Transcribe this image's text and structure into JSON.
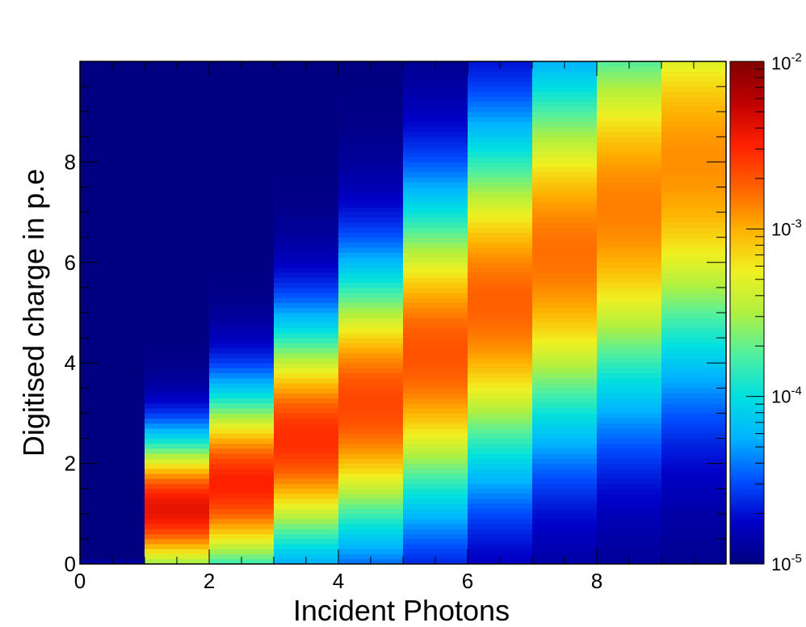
{
  "chart_data": {
    "type": "heatmap",
    "title": "",
    "xlabel": "Incident Photons",
    "ylabel": "Digitised charge in p.e",
    "xlim": [
      0,
      10
    ],
    "ylim": [
      0,
      10
    ],
    "x_ticks": [
      0,
      2,
      4,
      6,
      8
    ],
    "x_tick_labels": [
      "0",
      "2",
      "4",
      "6",
      "8"
    ],
    "y_ticks": [
      0,
      2,
      4,
      6,
      8
    ],
    "y_tick_labels": [
      "0",
      "2",
      "4",
      "6",
      "8"
    ],
    "z_scale": "log",
    "zlim": [
      1e-05,
      0.01
    ],
    "colorbar_labels": [
      {
        "value": 0.01,
        "base": "10",
        "exp": "-2"
      },
      {
        "value": 0.001,
        "base": "10",
        "exp": "-3"
      },
      {
        "value": 0.0001,
        "base": "10",
        "exp": "-4"
      },
      {
        "value": 1e-05,
        "base": "10",
        "exp": "-5"
      }
    ],
    "colormap": [
      "#000080",
      "#0000c8",
      "#0050ff",
      "#00b4ff",
      "#00e0e0",
      "#50f0a0",
      "#b0f040",
      "#f0f020",
      "#ffb000",
      "#ff6000",
      "#ff2000",
      "#c00000",
      "#800000"
    ],
    "columns": [
      {
        "x": [
          0,
          1
        ],
        "peak_y": 0.05,
        "peak_log": -4.9,
        "sigma": 0.05,
        "floor_log": -5.2
      },
      {
        "x": [
          1,
          2
        ],
        "peak_y": 1.1,
        "peak_log": -2.4,
        "sigma": 1.0,
        "floor_log": -5.0
      },
      {
        "x": [
          2,
          3
        ],
        "peak_y": 1.6,
        "peak_log": -2.5,
        "sigma": 1.3,
        "floor_log": -5.0
      },
      {
        "x": [
          3,
          4
        ],
        "peak_y": 2.5,
        "peak_log": -2.55,
        "sigma": 1.6,
        "floor_log": -5.0
      },
      {
        "x": [
          4,
          5
        ],
        "peak_y": 3.2,
        "peak_log": -2.65,
        "sigma": 1.9,
        "floor_log": -5.0
      },
      {
        "x": [
          5,
          6
        ],
        "peak_y": 4.2,
        "peak_log": -2.7,
        "sigma": 2.2,
        "floor_log": -5.0
      },
      {
        "x": [
          6,
          7
        ],
        "peak_y": 5.2,
        "peak_log": -2.75,
        "sigma": 2.4,
        "floor_log": -5.0
      },
      {
        "x": [
          7,
          8
        ],
        "peak_y": 6.2,
        "peak_log": -2.8,
        "sigma": 2.6,
        "floor_log": -5.0
      },
      {
        "x": [
          8,
          9
        ],
        "peak_y": 7.1,
        "peak_log": -2.85,
        "sigma": 2.8,
        "floor_log": -5.0
      },
      {
        "x": [
          9,
          10
        ],
        "peak_y": 8.0,
        "peak_log": -2.9,
        "sigma": 3.0,
        "floor_log": -5.0
      }
    ]
  }
}
